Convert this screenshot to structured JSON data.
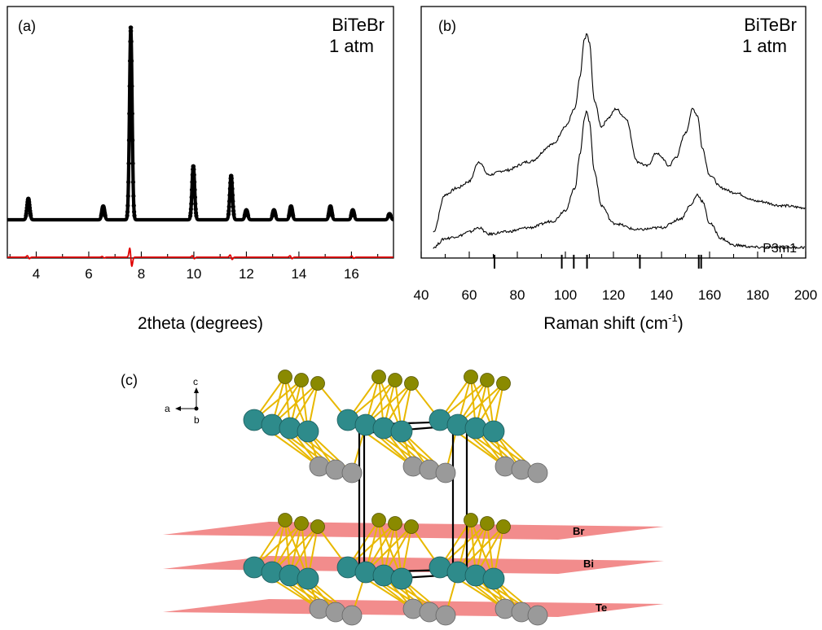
{
  "panels": {
    "a": {
      "label": "(a)",
      "compound": "BiTeBr",
      "pressure": "1 atm",
      "xlabel": "2theta (degrees)",
      "ticks": [
        "4",
        "6",
        "8",
        "10",
        "12",
        "14",
        "16"
      ]
    },
    "b": {
      "label": "(b)",
      "compound": "BiTeBr",
      "pressure": "1 atm",
      "xlabel_main": "Raman shift (cm",
      "xlabel_sup": "-1",
      "xlabel_end": ")",
      "space_group": "P3m1",
      "ticks": [
        "40",
        "60",
        "80",
        "100",
        "120",
        "140",
        "160",
        "180",
        "200"
      ]
    },
    "c": {
      "label": "(c)",
      "compass": {
        "a": "a",
        "b": "b",
        "c": "c"
      },
      "layers": [
        "Br",
        "Bi",
        "Te"
      ]
    }
  },
  "colors": {
    "observed": "#000000",
    "difference": "#e00000",
    "bi_atom": "#2e8b8b",
    "te_atom": "#9a9a9a",
    "br_atom": "#8a8a00",
    "bond": "#e8b800",
    "plane": "#f07878"
  },
  "chart_data": [
    {
      "type": "scatter",
      "panel": "a",
      "xlabel": "2theta (degrees)",
      "ylabel": "",
      "xlim": [
        2.9,
        17.6
      ],
      "baseline": 0,
      "peaks": [
        {
          "x": 3.7,
          "height": 0.11
        },
        {
          "x": 6.55,
          "height": 0.07
        },
        {
          "x": 7.6,
          "height": 0.99
        },
        {
          "x": 9.98,
          "height": 0.28
        },
        {
          "x": 11.42,
          "height": 0.23
        },
        {
          "x": 12.0,
          "height": 0.05
        },
        {
          "x": 13.05,
          "height": 0.05
        },
        {
          "x": 13.7,
          "height": 0.07
        },
        {
          "x": 15.2,
          "height": 0.07
        },
        {
          "x": 16.05,
          "height": 0.05
        },
        {
          "x": 17.45,
          "height": 0.03
        }
      ],
      "difference_features": [
        {
          "x": 3.7,
          "amplitude": 0.02
        },
        {
          "x": 6.55,
          "amplitude": 0.01
        },
        {
          "x": 7.6,
          "amplitude": 0.12
        },
        {
          "x": 9.98,
          "amplitude": 0.02
        },
        {
          "x": 11.42,
          "amplitude": 0.03
        },
        {
          "x": 13.7,
          "amplitude": 0.02
        },
        {
          "x": 16.05,
          "amplitude": 0.015
        }
      ],
      "series": [
        {
          "name": "",
          "values": [],
          "style": "observed-points"
        },
        {
          "name": "",
          "values": [],
          "style": "difference-curve"
        }
      ]
    },
    {
      "type": "line",
      "panel": "b",
      "xlabel": "Raman shift (cm-1)",
      "ylabel": "",
      "xlim": [
        40,
        200
      ],
      "series": [
        {
          "name": "",
          "x": [
            45,
            50,
            55,
            60,
            64,
            68,
            75,
            85,
            95,
            100,
            104,
            106,
            108,
            109,
            110,
            112,
            115,
            118,
            121,
            125,
            130,
            134,
            138,
            140,
            143,
            146,
            150,
            153,
            155,
            157,
            160,
            165,
            170,
            180,
            190,
            200
          ],
          "values": [
            0.1,
            0.27,
            0.3,
            0.33,
            0.42,
            0.36,
            0.38,
            0.42,
            0.5,
            0.58,
            0.66,
            0.8,
            0.98,
            1.0,
            0.96,
            0.7,
            0.58,
            0.62,
            0.66,
            0.62,
            0.42,
            0.4,
            0.46,
            0.44,
            0.4,
            0.44,
            0.55,
            0.66,
            0.63,
            0.48,
            0.36,
            0.3,
            0.28,
            0.24,
            0.22,
            0.21
          ]
        },
        {
          "name": "",
          "x": [
            45,
            50,
            55,
            60,
            64,
            68,
            75,
            85,
            95,
            100,
            104,
            106,
            108,
            109,
            110,
            112,
            115,
            120,
            130,
            140,
            148,
            152,
            155,
            157,
            160,
            165,
            170,
            180,
            190,
            200
          ],
          "values": [
            0.03,
            0.07,
            0.08,
            0.1,
            0.12,
            0.09,
            0.1,
            0.12,
            0.15,
            0.2,
            0.3,
            0.45,
            0.62,
            0.65,
            0.6,
            0.38,
            0.22,
            0.14,
            0.11,
            0.12,
            0.16,
            0.22,
            0.27,
            0.24,
            0.14,
            0.07,
            0.04,
            0.03,
            0.03,
            0.03
          ]
        }
      ],
      "reference_ticks": [
        70.5,
        98.5,
        103.5,
        109,
        131,
        155.5,
        156.5
      ]
    }
  ]
}
